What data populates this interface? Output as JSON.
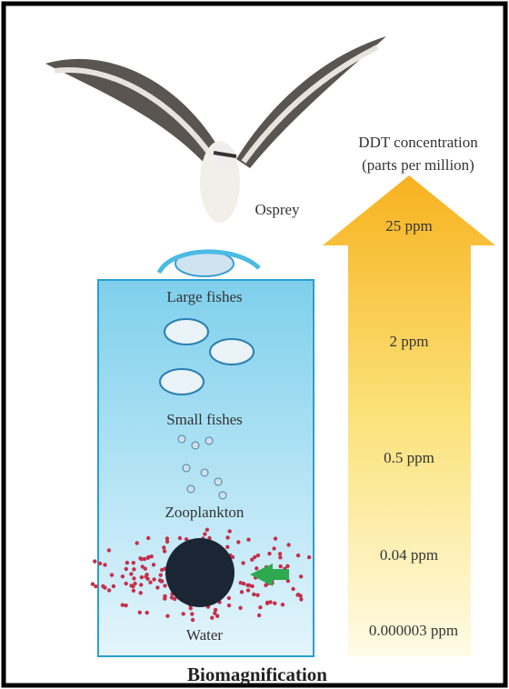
{
  "header": {
    "lines": [
      "DDT concentration",
      "(parts per million)"
    ]
  },
  "levels": [
    {
      "organism": "Osprey",
      "concentration": "25 ppm"
    },
    {
      "organism": "Large fishes",
      "concentration": "2 ppm"
    },
    {
      "organism": "Small fishes",
      "concentration": "0.5 ppm"
    },
    {
      "organism": "Zooplankton",
      "concentration": "0.04 ppm"
    },
    {
      "organism": "Water",
      "concentration": "0.000003 ppm"
    }
  ],
  "title": "Biomagnification"
}
